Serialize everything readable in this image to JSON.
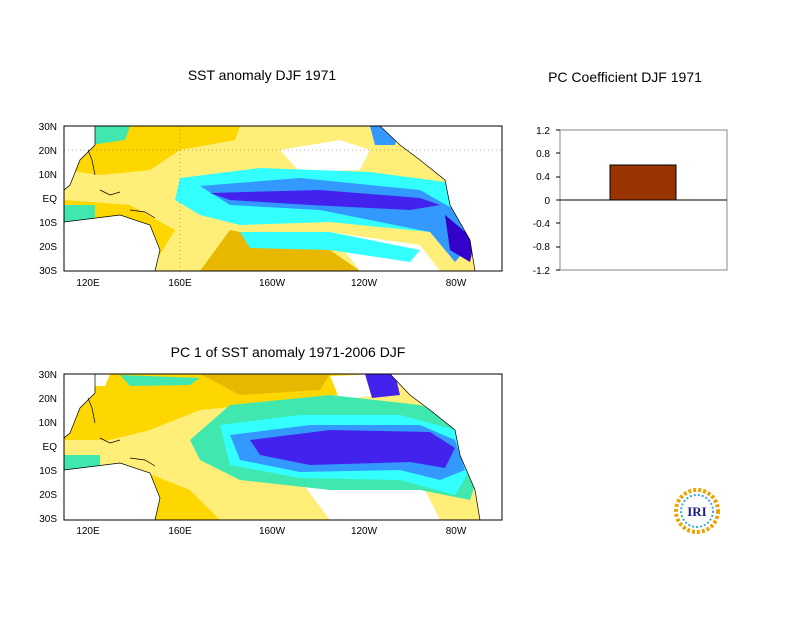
{
  "colors": {
    "strong_warm": "#e8b800",
    "warm": "#ffd700",
    "weak_warm": "#ffee77",
    "neutral": "#ffffff",
    "weak_cool": "#40e8b0",
    "cool": "#33ffff",
    "mid_cool": "#3399ff",
    "strong_cool": "#4422ee",
    "deep_cool": "#3300cc",
    "bar": "#993300"
  },
  "chart_data": [
    {
      "type": "heatmap",
      "title": "SST anomaly DJF 1971",
      "x_ticks": [
        "120E",
        "160E",
        "160W",
        "120W",
        "80W"
      ],
      "y_ticks": [
        "30N",
        "20N",
        "10N",
        "EQ",
        "10S",
        "20S",
        "30S"
      ]
    },
    {
      "type": "bar",
      "title": "PC Coefficient  DJF 1971",
      "values": [
        0.6
      ],
      "ylim": [
        -1.2,
        1.2
      ],
      "y_ticks": [
        "1.2",
        "0.8",
        "0.4",
        "0",
        "-0.4",
        "-0.8",
        "-1.2"
      ]
    },
    {
      "type": "heatmap",
      "title": "PC 1 of SST anomaly 1971-2006 DJF",
      "x_ticks": [
        "120E",
        "160E",
        "160W",
        "120W",
        "80W"
      ],
      "y_ticks": [
        "30N",
        "20N",
        "10N",
        "EQ",
        "10S",
        "20S",
        "30S"
      ]
    }
  ],
  "logo": {
    "text": "IRI"
  }
}
